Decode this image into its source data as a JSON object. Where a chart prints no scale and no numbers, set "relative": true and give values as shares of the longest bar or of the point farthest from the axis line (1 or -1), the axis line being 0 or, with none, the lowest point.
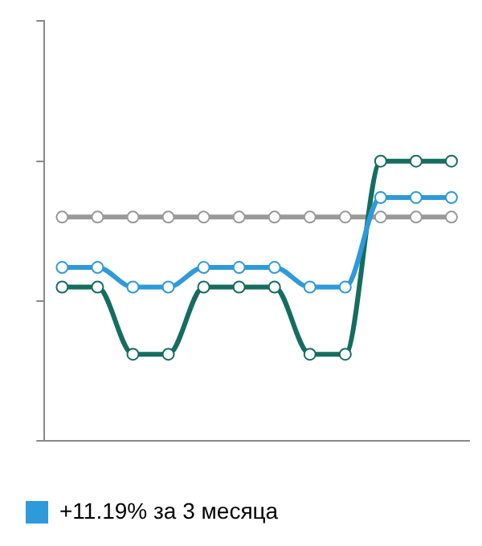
{
  "chart_data": {
    "type": "line",
    "relative": true,
    "categories": [
      null,
      null,
      null,
      null,
      null,
      null,
      null,
      null,
      null,
      null,
      null,
      null
    ],
    "series": [
      {
        "color": "#999999",
        "values": [
          0.8,
          0.8,
          0.8,
          0.8,
          0.8,
          0.8,
          0.8,
          0.8,
          0.8,
          0.8,
          0.8,
          0.8
        ]
      },
      {
        "color": "#156d5f",
        "values": [
          0.55,
          0.55,
          0.31,
          0.31,
          0.55,
          0.55,
          0.55,
          0.31,
          0.31,
          1,
          1,
          1
        ]
      },
      {
        "name": "+11.19% за 3 месяца",
        "color": "#2e9ad9",
        "values": [
          0.62,
          0.62,
          0.55,
          0.55,
          0.62,
          0.62,
          0.62,
          0.55,
          0.55,
          0.87,
          0.87,
          0.87
        ]
      }
    ],
    "legend": "bottom left",
    "marker": "circle",
    "line_style": "solid"
  }
}
